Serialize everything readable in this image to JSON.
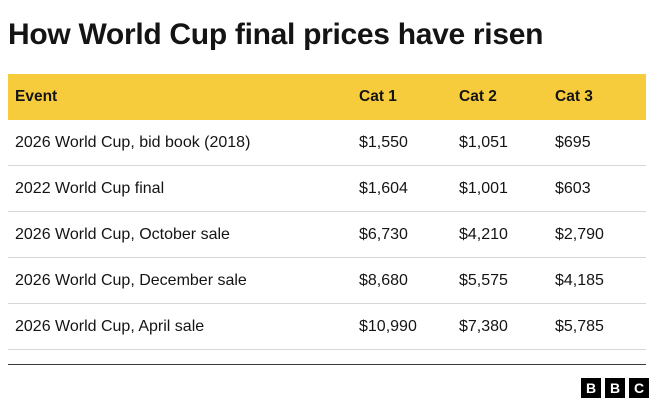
{
  "title": "How World Cup final prices have risen",
  "colors": {
    "header_bg": "#f6cc3d",
    "rule": "#d6d6d6",
    "text": "#141414"
  },
  "chart_data": {
    "type": "table",
    "title": "How World Cup final prices have risen",
    "columns": [
      "Event",
      "Cat 1",
      "Cat 2",
      "Cat 3"
    ],
    "rows": [
      [
        "2026 World Cup, bid book (2018)",
        "$1,550",
        "$1,051",
        "$695"
      ],
      [
        "2022 World Cup final",
        "$1,604",
        "$1,001",
        "$603"
      ],
      [
        "2026 World Cup, October sale",
        "$6,730",
        "$4,210",
        "$2,790"
      ],
      [
        "2026 World Cup, December sale",
        "$8,680",
        "$5,575",
        "$4,185"
      ],
      [
        "2026 World Cup, April sale",
        "$10,990",
        "$7,380",
        "$5,785"
      ]
    ]
  },
  "logo": {
    "letters": [
      "B",
      "B",
      "C"
    ]
  }
}
